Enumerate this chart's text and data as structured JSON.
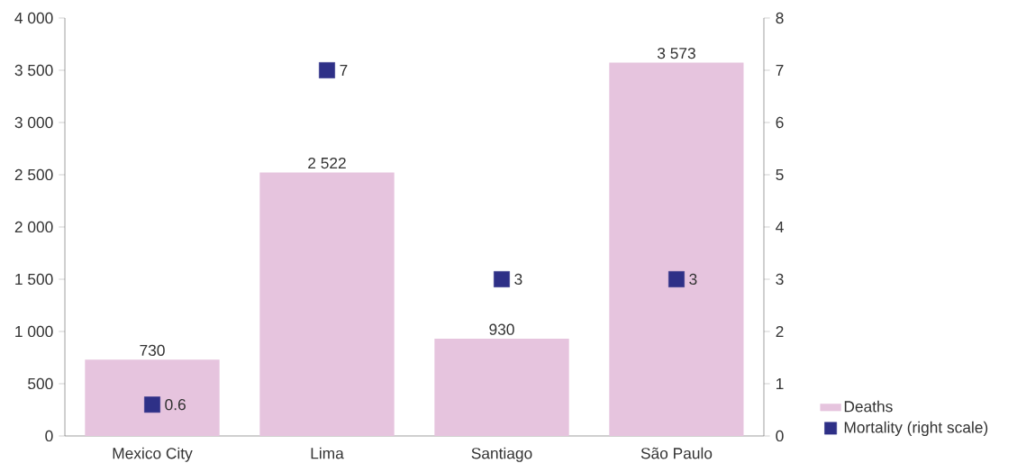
{
  "chart_data": {
    "type": "bar",
    "categories": [
      "Mexico City",
      "Lima",
      "Santiago",
      "São Paulo"
    ],
    "series": [
      {
        "name": "Deaths",
        "color": "#e6c4de",
        "values": [
          730,
          2522,
          930,
          3573
        ],
        "value_labels": [
          "730",
          "2 522",
          "930",
          "3 573"
        ]
      },
      {
        "name": "Mortality (right scale)",
        "type": "scatter",
        "axis": "y2",
        "color": "#2e3087",
        "values": [
          0.6,
          7,
          3,
          3
        ],
        "value_labels": [
          "0.6",
          "7",
          "3",
          "3"
        ]
      }
    ],
    "ylim": [
      0,
      4000
    ],
    "yticks": [
      0,
      500,
      {
        "value": 1000,
        "label": "1 000"
      },
      {
        "value": 1500,
        "label": "1 500"
      },
      {
        "value": 2000,
        "label": "2 000"
      },
      {
        "value": 2500,
        "label": "2 500"
      },
      {
        "value": 3000,
        "label": "3 000"
      },
      {
        "value": 3500,
        "label": "3 500"
      },
      {
        "value": 4000,
        "label": "4 000"
      }
    ],
    "y2lim": [
      0,
      8
    ],
    "y2ticks": [
      0,
      1,
      2,
      3,
      4,
      5,
      6,
      7,
      8
    ],
    "marker": "square",
    "legend": "bottom right",
    "grid": false
  }
}
